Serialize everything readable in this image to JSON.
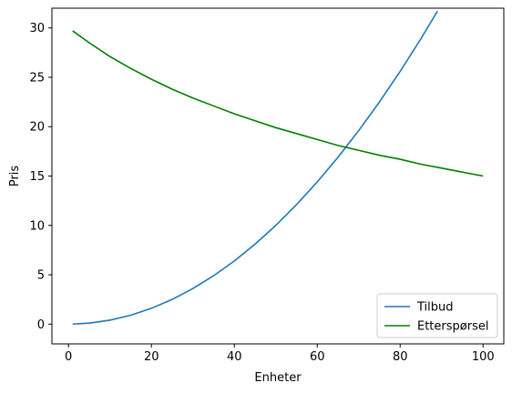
{
  "chart_data": {
    "type": "line",
    "title": "",
    "xlabel": "Enheter",
    "ylabel": "Pris",
    "xlim": [
      -4,
      105
    ],
    "ylim": [
      -2,
      32
    ],
    "xticks": [
      0,
      20,
      40,
      60,
      80,
      100
    ],
    "yticks": [
      0,
      5,
      10,
      15,
      20,
      25,
      30
    ],
    "grid": false,
    "legend_position": "lower-right",
    "series": [
      {
        "name": "Tilbud",
        "color": "#1f77b4",
        "x": [
          1,
          5,
          10,
          15,
          20,
          25,
          30,
          35,
          40,
          45,
          50,
          55,
          60,
          65,
          70,
          75,
          80,
          85,
          89
        ],
        "y": [
          0.004,
          0.1,
          0.4,
          0.9,
          1.6,
          2.5,
          3.6,
          4.9,
          6.4,
          8.1,
          10.0,
          12.1,
          14.4,
          16.9,
          19.6,
          22.5,
          25.6,
          28.9,
          31.7
        ]
      },
      {
        "name": "Etterspørsel",
        "color": "#008000",
        "x": [
          1,
          5,
          10,
          15,
          20,
          25,
          30,
          35,
          40,
          45,
          50,
          55,
          60,
          65,
          70,
          75,
          80,
          85,
          90,
          95,
          100
        ],
        "y": [
          29.7,
          28.5,
          27.1,
          25.9,
          24.8,
          23.8,
          22.9,
          22.1,
          21.3,
          20.6,
          19.9,
          19.3,
          18.7,
          18.1,
          17.6,
          17.1,
          16.7,
          16.2,
          15.8,
          15.4,
          15.0
        ]
      }
    ]
  }
}
